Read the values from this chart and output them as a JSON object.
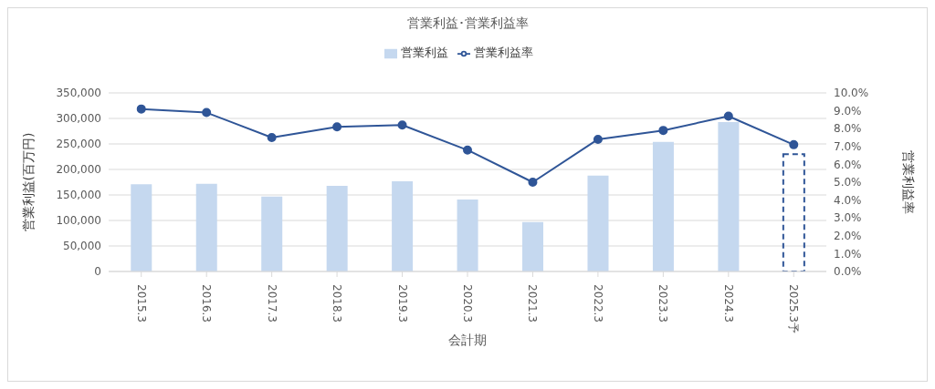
{
  "chart_data": {
    "type": "bar",
    "title": "営業利益･営業利益率",
    "xlabel": "会計期",
    "ylabel": "営業利益(百万円)",
    "y2label": "営業利益率",
    "categories": [
      "2015.3",
      "2016.3",
      "2017.3",
      "2018.3",
      "2019.3",
      "2020.3",
      "2021.3",
      "2022.3",
      "2023.3",
      "2024.3",
      "2025.3予"
    ],
    "stacked": true,
    "series": [
      {
        "name": "営業利益",
        "color": "#c5d8ef",
        "values": [
          171000,
          172000,
          147000,
          168000,
          177000,
          141000,
          97000,
          188000,
          254000,
          293000,
          null
        ]
      },
      {
        "color": "#2f5597",
        "line_style": "dashed",
        "values": [
          null,
          null,
          null,
          null,
          null,
          null,
          null,
          null,
          null,
          null,
          230000
        ]
      },
      {
        "name": "営業利益率",
        "type": "line",
        "axis": "y2",
        "color": "#2f5597",
        "marker": "circle",
        "line_style": "solid",
        "values": [
          9.1,
          8.9,
          7.5,
          8.1,
          8.2,
          6.8,
          5.0,
          7.4,
          7.9,
          8.7,
          7.1
        ]
      }
    ],
    "ylim": [
      0,
      350000
    ],
    "yticks": [
      {
        "value": 0,
        "label": "0"
      },
      {
        "value": 50000,
        "label": "50,000"
      },
      {
        "value": 100000,
        "label": "100,000"
      },
      {
        "value": 150000,
        "label": "150,000"
      },
      {
        "value": 200000,
        "label": "200,000"
      },
      {
        "value": 250000,
        "label": "250,000"
      },
      {
        "value": 300000,
        "label": "300,000"
      },
      {
        "value": 350000,
        "label": "350,000"
      }
    ],
    "y2lim": [
      0,
      10
    ],
    "y2ticks": [
      {
        "value": 0,
        "label": "0.0%"
      },
      {
        "value": 1,
        "label": "1.0%"
      },
      {
        "value": 2,
        "label": "2.0%"
      },
      {
        "value": 3,
        "label": "3.0%"
      },
      {
        "value": 4,
        "label": "4.0%"
      },
      {
        "value": 5,
        "label": "5.0%"
      },
      {
        "value": 6,
        "label": "6.0%"
      },
      {
        "value": 7,
        "label": "7.0%"
      },
      {
        "value": 8,
        "label": "8.0%"
      },
      {
        "value": 9,
        "label": "9.0%"
      },
      {
        "value": 10,
        "label": "10.0%"
      }
    ],
    "grid": "y",
    "legend": "top"
  }
}
